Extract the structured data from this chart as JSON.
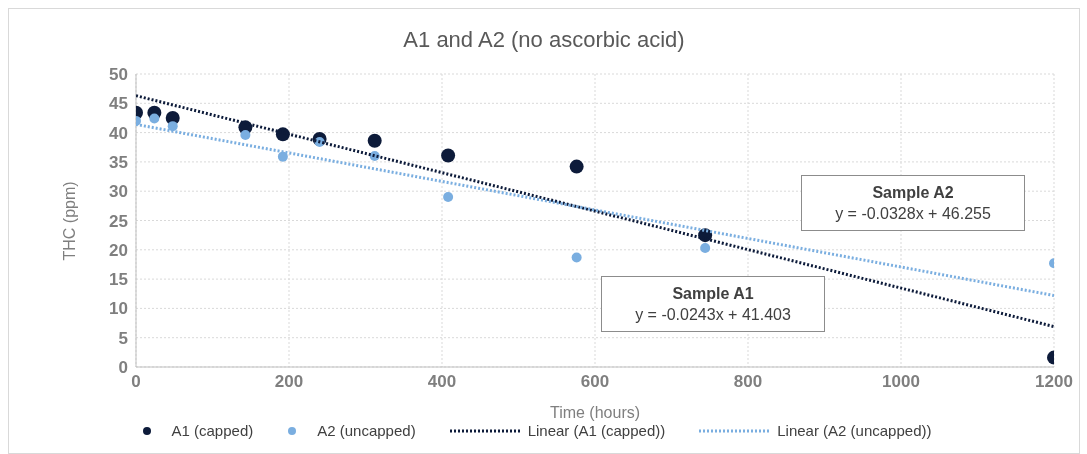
{
  "chart_data": {
    "type": "scatter",
    "title": "A1 and A2 (no ascorbic acid)",
    "xlabel": "Time (hours)",
    "ylabel": "THC (ppm)",
    "xlim": [
      0,
      1200
    ],
    "xticks": [
      0,
      200,
      400,
      600,
      800,
      1000,
      1200
    ],
    "ylim": [
      0,
      50
    ],
    "yticks": [
      0,
      5,
      10,
      15,
      20,
      25,
      30,
      35,
      40,
      45,
      50
    ],
    "grid": true,
    "legend": "bottom",
    "series": [
      {
        "name": "A1 (capped)",
        "marker": "circle",
        "color": "#0d1b3a",
        "x": [
          0,
          24,
          48,
          143,
          192,
          240,
          312,
          408,
          576,
          744,
          1200
        ],
        "values": [
          43.4,
          43.4,
          42.5,
          40.9,
          39.7,
          38.9,
          38.6,
          36.1,
          34.2,
          22.5,
          1.6
        ]
      },
      {
        "name": "A2 (uncapped)",
        "marker": "circle",
        "color": "#7aaee0",
        "x": [
          0,
          24,
          48,
          143,
          192,
          240,
          312,
          408,
          576,
          744,
          1200
        ],
        "values": [
          42.0,
          42.4,
          41.1,
          39.6,
          35.9,
          38.4,
          36.0,
          29.0,
          18.7,
          20.3,
          17.7
        ]
      },
      {
        "name": "Linear (A1 (capped))",
        "type": "line",
        "marker": "none",
        "line_style": "dotted",
        "color": "#0d1b3a",
        "x": [
          0,
          1200
        ],
        "values": [
          46.3,
          6.9
        ]
      },
      {
        "name": "Linear (A2 (uncapped))",
        "type": "line",
        "marker": "none",
        "line_style": "dotted",
        "color": "#7aaee0",
        "x": [
          0,
          1200
        ],
        "values": [
          41.4,
          12.2
        ]
      }
    ],
    "annotations": [
      "Sample A2",
      "y = -0.0328x + 46.255",
      "Sample A1",
      "y = -0.0243x + 41.403"
    ]
  }
}
